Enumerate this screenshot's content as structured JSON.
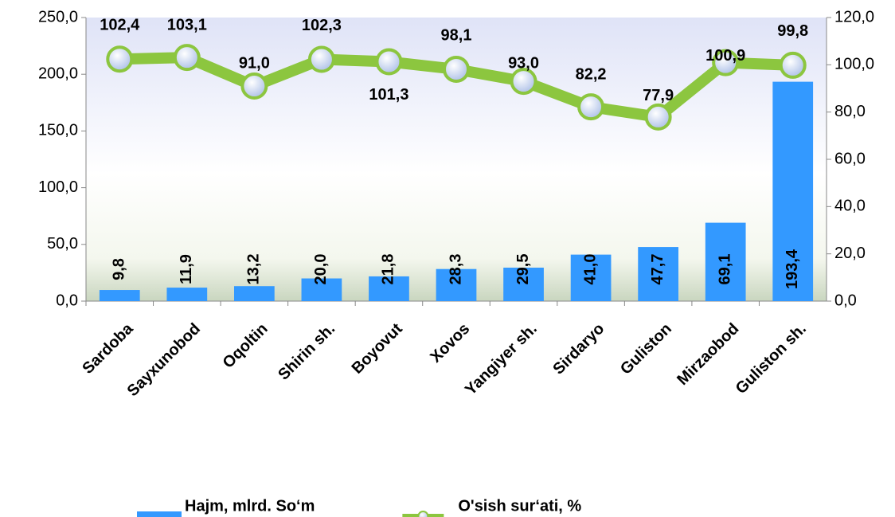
{
  "chart_data": {
    "type": "bar",
    "categories": [
      "Sardoba",
      "Sayxunobod",
      "Oqoltin",
      "Shirin sh.",
      "Boyovut",
      "Xovos",
      "Yangiyer sh.",
      "Sirdaryo",
      "Guliston",
      "Mirzaobod",
      "Guliston sh."
    ],
    "series": [
      {
        "name": "Hajm, mlrd. So‘m",
        "type": "bar",
        "color": "#3399ff",
        "values": [
          9.8,
          11.9,
          13.2,
          20.0,
          21.8,
          28.3,
          29.5,
          41.0,
          47.7,
          69.1,
          193.4
        ],
        "value_labels": [
          "9,8",
          "11,9",
          "13,2",
          "20,0",
          "21,8",
          "28,3",
          "29,5",
          "41,0",
          "47,7",
          "69,1",
          "193,4"
        ]
      },
      {
        "name": "O'sish sur‘ati, %",
        "type": "line",
        "axis": "y2",
        "color": "#8cc63f",
        "values": [
          102.4,
          103.1,
          91.0,
          102.3,
          101.3,
          98.1,
          93.0,
          82.2,
          77.9,
          100.9,
          99.8
        ],
        "value_labels": [
          "102,4",
          "103,1",
          "91,0",
          "102,3",
          "101,3",
          "98,1",
          "93,0",
          "82,2",
          "77,9",
          "100,9",
          "99,8"
        ]
      }
    ],
    "ylim": [
      0,
      250
    ],
    "yticks": [
      {
        "value": 0,
        "label": "0,0"
      },
      {
        "value": 50,
        "label": "50,0"
      },
      {
        "value": 100,
        "label": "100,0"
      },
      {
        "value": 150,
        "label": "150,0"
      },
      {
        "value": 200,
        "label": "200,0"
      },
      {
        "value": 250,
        "label": "250,0"
      }
    ],
    "y2lim": [
      0,
      120
    ],
    "y2ticks": [
      {
        "value": 0,
        "label": "0,0"
      },
      {
        "value": 20,
        "label": "20,0"
      },
      {
        "value": 40,
        "label": "40,0"
      },
      {
        "value": 60,
        "label": "60,0"
      },
      {
        "value": 80,
        "label": "80,0"
      },
      {
        "value": 100,
        "label": "100,0"
      },
      {
        "value": 120,
        "label": "120,0"
      }
    ],
    "legend": "bottom"
  }
}
